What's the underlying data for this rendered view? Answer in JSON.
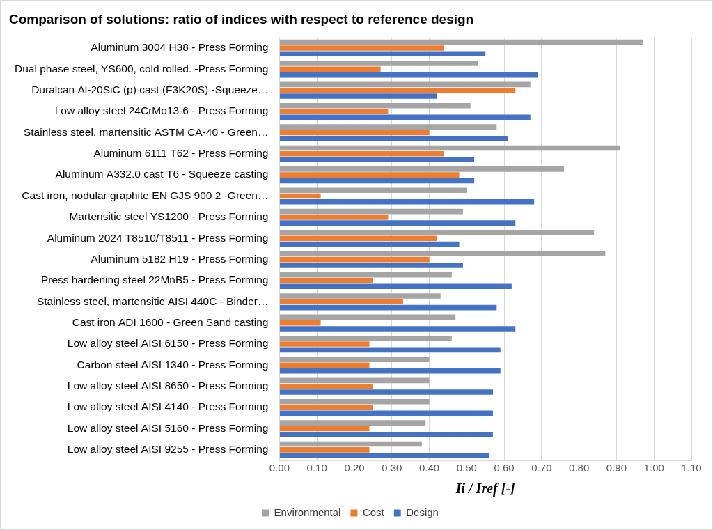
{
  "chart_data": {
    "type": "bar",
    "orientation": "horizontal",
    "title": "Comparison of solutions: ratio of indices with respect to reference design",
    "x_label": "Ii / Iref [-]",
    "categories": [
      "Aluminum 3004 H38 - Press Forming",
      "Dual phase steel, YS600, cold rolled. -Press Forming",
      "Duralcan Al-20SiC (p) cast (F3K20S) -Squeeze…",
      "Low alloy steel 24CrMo13-6 - Press Forming",
      "Stainless steel, martensitic ASTM CA-40 - Green…",
      "Aluminum 6111 T62 - Press Forming",
      "Aluminum A332.0 cast T6 - Squeeze casting",
      "Cast iron, nodular graphite EN GJS 900 2 -Green…",
      "Martensitic steel YS1200 - Press Forming",
      "Aluminum 2024 T8510/T8511 - Press Forming",
      "Aluminum 5182 H19 - Press Forming",
      "Press hardening steel 22MnB5 - Press Forming",
      "Stainless steel, martensitic AISI 440C - Binder…",
      "Cast iron ADI 1600 - Green Sand casting",
      "Low alloy steel AISI 6150 - Press Forming",
      "Carbon steel AISI 1340 - Press Forming",
      "Low alloy steel AISI 8650 - Press Forming",
      "Low alloy steel AISI 4140 - Press Forming",
      "Low alloy steel AISI 5160 - Press Forming",
      "Low alloy steel AISI 9255 - Press Forming"
    ],
    "series": [
      {
        "name": "Environmental",
        "color": "#a5a5a5",
        "values": [
          0.97,
          0.53,
          0.67,
          0.51,
          0.58,
          0.91,
          0.76,
          0.5,
          0.49,
          0.84,
          0.87,
          0.46,
          0.43,
          0.47,
          0.46,
          0.4,
          0.4,
          0.4,
          0.39,
          0.38
        ]
      },
      {
        "name": "Cost",
        "color": "#ed7d31",
        "values": [
          0.44,
          0.27,
          0.63,
          0.29,
          0.4,
          0.44,
          0.48,
          0.11,
          0.29,
          0.42,
          0.4,
          0.25,
          0.33,
          0.11,
          0.24,
          0.24,
          0.25,
          0.25,
          0.24,
          0.24
        ]
      },
      {
        "name": "Design",
        "color": "#4472c4",
        "values": [
          0.55,
          0.69,
          0.42,
          0.67,
          0.61,
          0.52,
          0.52,
          0.68,
          0.63,
          0.48,
          0.49,
          0.62,
          0.58,
          0.63,
          0.59,
          0.59,
          0.57,
          0.57,
          0.57,
          0.56
        ]
      }
    ],
    "xlim": [
      0,
      1.1
    ],
    "xticks": [
      {
        "value": 0,
        "label": "0.00"
      },
      {
        "value": 0.1,
        "label": "0.10"
      },
      {
        "value": 0.2,
        "label": "0.20"
      },
      {
        "value": 0.3,
        "label": "0.30"
      },
      {
        "value": 0.4,
        "label": "0.40"
      },
      {
        "value": 0.5,
        "label": "0.50"
      },
      {
        "value": 0.6,
        "label": "0.60"
      },
      {
        "value": 0.7,
        "label": "0.70"
      },
      {
        "value": 0.8,
        "label": "0.80"
      },
      {
        "value": 0.9,
        "label": "0.90"
      },
      {
        "value": 1.0,
        "label": "1.00"
      },
      {
        "value": 1.1,
        "label": "1.10"
      }
    ],
    "grid": true,
    "legend": "bottom"
  }
}
